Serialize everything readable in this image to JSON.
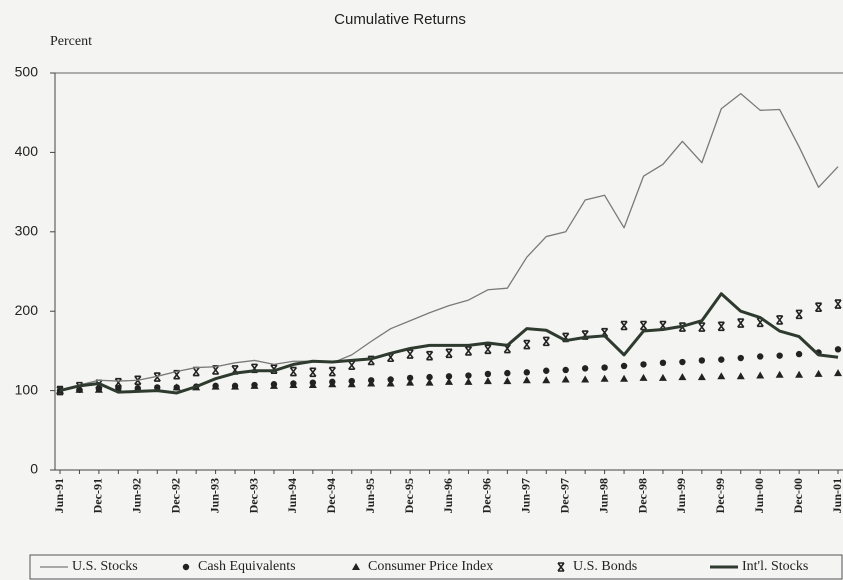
{
  "chart_data": {
    "type": "line",
    "title": "Cumulative Returns",
    "y_label": "Percent",
    "categories": [
      "Jun-91",
      null,
      "Dec-91",
      null,
      "Jun-92",
      null,
      "Dec-92",
      null,
      "Jun-93",
      null,
      "Dec-93",
      null,
      "Jun-94",
      null,
      "Dec-94",
      null,
      "Jun-95",
      null,
      "Dec-95",
      null,
      "Jun-96",
      null,
      "Dec-96",
      null,
      "Jun-97",
      null,
      "Dec-97",
      null,
      "Jun-98",
      null,
      "Dec-98",
      null,
      "Jun-99",
      null,
      "Dec-99",
      null,
      "Jun-00",
      null,
      "Dec-00",
      null,
      "Jun-01"
    ],
    "ylim": [
      0,
      500
    ],
    "yticks": [
      0,
      100,
      200,
      300,
      400,
      500
    ],
    "legend": "bottom",
    "series": [
      {
        "name": "U.S. Stocks",
        "color": "#7a7a7a",
        "marker": "line",
        "line_width": 1.3,
        "values": [
          100,
          107,
          113,
          112,
          113,
          118,
          124,
          129,
          130,
          135,
          138,
          133,
          137,
          137,
          135,
          145,
          162,
          178,
          188,
          198,
          207,
          214,
          227,
          229,
          268,
          294,
          300,
          340,
          346,
          305,
          370,
          385,
          414,
          387,
          455,
          474,
          453,
          454,
          407,
          356,
          382
        ]
      },
      {
        "name": "Cash Equivalents",
        "color": "#222222",
        "marker": "dot",
        "values": [
          100,
          101,
          102,
          103,
          103,
          104,
          104,
          105,
          106,
          106,
          107,
          108,
          109,
          110,
          111,
          112,
          113,
          114,
          116,
          117,
          118,
          119,
          121,
          122,
          123,
          125,
          126,
          128,
          129,
          131,
          133,
          135,
          136,
          138,
          139,
          141,
          143,
          144,
          146,
          148,
          152
        ]
      },
      {
        "name": "Consumer Price Index",
        "color": "#222222",
        "marker": "triangle",
        "values": [
          100,
          101,
          101,
          102,
          103,
          103,
          104,
          104,
          105,
          105,
          106,
          106,
          107,
          107,
          108,
          108,
          109,
          109,
          110,
          110,
          111,
          111,
          112,
          112,
          113,
          113,
          114,
          114,
          115,
          115,
          116,
          116,
          117,
          117,
          118,
          118,
          119,
          120,
          120,
          121,
          122
        ]
      },
      {
        "name": "U.S. Bonds",
        "color": "#222222",
        "marker": "x",
        "values": [
          100,
          105,
          108,
          110,
          113,
          117,
          120,
          124,
          126,
          126,
          128,
          127,
          124,
          123,
          124,
          132,
          138,
          142,
          146,
          144,
          147,
          150,
          152,
          153,
          158,
          162,
          167,
          170,
          173,
          182,
          182,
          182,
          180,
          180,
          181,
          185,
          186,
          189,
          196,
          205,
          209
        ]
      },
      {
        "name": "Int'l. Stocks",
        "color": "#2e3a2e",
        "marker": "line",
        "line_width": 3,
        "values": [
          100,
          106,
          109,
          98,
          99,
          100,
          97,
          105,
          115,
          122,
          125,
          125,
          133,
          137,
          136,
          138,
          140,
          147,
          153,
          157,
          157,
          157,
          160,
          157,
          178,
          176,
          163,
          167,
          169,
          145,
          175,
          177,
          181,
          188,
          222,
          200,
          192,
          175,
          168,
          145,
          142
        ]
      }
    ]
  }
}
